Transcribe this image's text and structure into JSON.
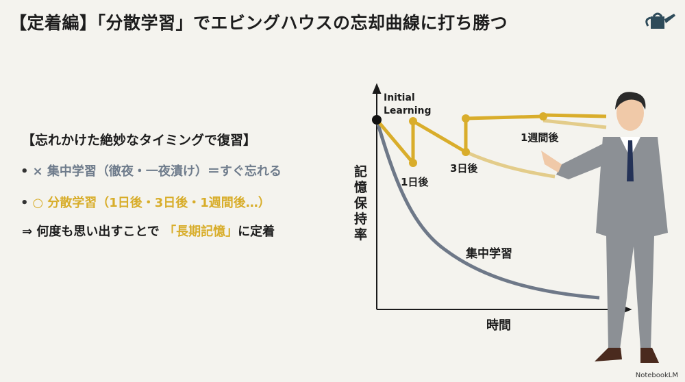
{
  "title": "【定着編】「分散学習」でエビングハウスの忘却曲線に打ち勝つ",
  "icon": "watering-can-icon",
  "bullets": {
    "heading": "【忘れかけた絶妙なタイミングで復習】",
    "item1": "× 集中学習（徹夜・一夜漬け）＝すぐ忘れる",
    "item2_mark": "○",
    "item2": "分散学習（1日後・3日後・1週間後…）",
    "conclusion_prefix": "⇒ 何度も思い出すことで",
    "conclusion_highlight": "「長期記憶」",
    "conclusion_suffix": "に定着",
    "bullet_char": "•"
  },
  "diagram": {
    "start_label_line1": "Initial",
    "start_label_line2": "Learning",
    "review1": "1日後",
    "review2": "3日後",
    "review3": "1週間後",
    "massed_label": "集中学習",
    "y_axis": "記憶保持率",
    "x_axis": "時間",
    "colors": {
      "spaced": "#d9ad2b",
      "massed": "#6e7888",
      "axis": "#1a1a1a"
    }
  },
  "watermark": "NotebookLM"
}
